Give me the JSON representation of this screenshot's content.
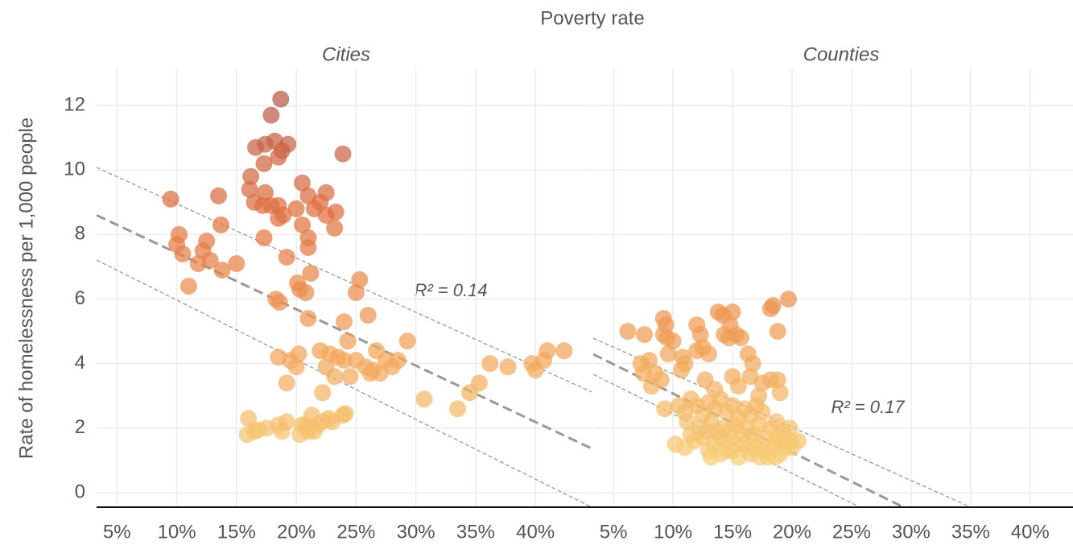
{
  "title": "Poverty rate",
  "ylabel": "Rate of homelessness per 1,000 people",
  "chart_data": [
    {
      "type": "scatter",
      "title": "Cities",
      "annotation": "R² = 0.14",
      "x": [
        18.7,
        17.9,
        16.6,
        17.4,
        18.2,
        18.8,
        19.3,
        18.5,
        17.3,
        23.9,
        16.2,
        16.1,
        17.4,
        16.5,
        17.2,
        17.9,
        18.5,
        18.9,
        18.5,
        20.5,
        21.0,
        22.5,
        22.0,
        21.5,
        22.5,
        23.3,
        20.0,
        23.2,
        20.5,
        21.0,
        17.3,
        21.0,
        19.2,
        13.5,
        9.5,
        13.7,
        10.2,
        10.0,
        12.5,
        10.5,
        12.2,
        11.8,
        12.8,
        15.0,
        13.8,
        11.0,
        21.2,
        20.1,
        20.3,
        20.8,
        25.3,
        25.0,
        18.3,
        18.6,
        21.0,
        26.0,
        24.0,
        24.3,
        18.5,
        19.5,
        20.2,
        20.0,
        19.2,
        22.0,
        22.8,
        23.5,
        22.5,
        23.2,
        24.0,
        25.0,
        24.5,
        25.8,
        26.2,
        26.7,
        26.4,
        27.0,
        27.5,
        28.0,
        28.5,
        29.3,
        22.2,
        30.7,
        33.5,
        34.5,
        35.3,
        36.2,
        37.7,
        39.7,
        40.0,
        40.7,
        41.0,
        42.4,
        16.0,
        15.9,
        16.5,
        16.8,
        17.5,
        18.5,
        18.8,
        19.2,
        20.3,
        20.5,
        21.0,
        21.3,
        21.5,
        21.8,
        22.2,
        22.7,
        23.0,
        21.0,
        23.9,
        24.1,
        20.8
      ],
      "values": [
        12.2,
        11.7,
        10.7,
        10.8,
        10.9,
        10.6,
        10.8,
        10.4,
        10.2,
        10.5,
        9.8,
        9.4,
        9.3,
        9.0,
        8.9,
        8.9,
        8.9,
        8.6,
        8.5,
        9.6,
        9.2,
        9.3,
        9.0,
        8.8,
        8.6,
        8.7,
        8.8,
        8.2,
        8.3,
        7.9,
        7.9,
        7.6,
        7.3,
        9.2,
        9.1,
        8.3,
        8.0,
        7.7,
        7.8,
        7.4,
        7.5,
        7.1,
        7.2,
        7.1,
        6.9,
        6.4,
        6.8,
        6.5,
        6.3,
        6.2,
        6.6,
        6.2,
        6.0,
        5.9,
        5.4,
        5.5,
        5.3,
        4.7,
        4.2,
        4.1,
        4.3,
        3.9,
        3.4,
        4.4,
        4.3,
        4.2,
        3.9,
        3.6,
        4.1,
        4.1,
        3.6,
        3.9,
        3.7,
        4.4,
        3.8,
        3.7,
        4.1,
        3.9,
        4.1,
        4.7,
        3.1,
        2.9,
        2.6,
        3.1,
        3.4,
        4.0,
        3.9,
        4.0,
        3.8,
        4.1,
        4.4,
        4.4,
        2.3,
        1.8,
        1.9,
        1.95,
        2.0,
        2.1,
        1.9,
        2.2,
        1.8,
        2.1,
        2.0,
        2.4,
        1.9,
        2.1,
        2.2,
        2.3,
        2.2,
        1.9,
        2.4,
        2.45,
        2.1
      ],
      "fit": {
        "x": [
          3.3,
          44.7
        ],
        "values": [
          8.6,
          1.37
        ]
      },
      "upper": {
        "x": [
          3.3,
          44.7
        ],
        "values": [
          10.08,
          3.12
        ]
      },
      "lower": {
        "x": [
          3.3,
          44.7
        ],
        "values": [
          7.21,
          -0.45
        ]
      },
      "xlim": [
        3.3,
        44.7
      ],
      "ylim": [
        -0.45,
        13.15
      ],
      "xticks": [
        {
          "value": 5,
          "label": "5%"
        },
        {
          "value": 10,
          "label": "10%"
        },
        {
          "value": 15,
          "label": "15%"
        },
        {
          "value": 20,
          "label": "20%"
        },
        {
          "value": 25,
          "label": "25%"
        },
        {
          "value": 30,
          "label": "30%"
        },
        {
          "value": 35,
          "label": "35%"
        },
        {
          "value": 40,
          "label": "40%"
        }
      ],
      "yticks": [
        0,
        2,
        4,
        6,
        8,
        10,
        12
      ],
      "grid": true,
      "color_scale": [
        "#f7d27a",
        "#f1a057",
        "#e0703f",
        "#b55749"
      ]
    },
    {
      "type": "scatter",
      "title": "Counties",
      "annotation": "R² = 0.17",
      "x": [
        6.2,
        7.6,
        9.2,
        9.4,
        9.2,
        9.5,
        10.0,
        9.6,
        10.8,
        11.0,
        10.7,
        7.3,
        7.5,
        8.0,
        8.5,
        8.2,
        9.0,
        12.0,
        12.3,
        12.5,
        12.0,
        13.0,
        13.8,
        14.2,
        15.0,
        14.8,
        15.3,
        14.7,
        15.7,
        14.3,
        16.3,
        16.7,
        18.2,
        18.4,
        19.7,
        18.8,
        12.7,
        13.5,
        15.0,
        15.5,
        16.5,
        17.5,
        18.2,
        18.8,
        19.0,
        17.2,
        9.3,
        10.5,
        11.0,
        11.5,
        12.0,
        12.5,
        13.0,
        13.5,
        14.0,
        14.5,
        15.0,
        15.5,
        16.0,
        16.5,
        17.0,
        17.5,
        11.2,
        12.2,
        13.2,
        14.2,
        15.2,
        16.2,
        17.2,
        18.2,
        18.7,
        19.2,
        19.8,
        20.5,
        20.0,
        10.2,
        11.0,
        11.8,
        12.5,
        13.0,
        13.5,
        14.0,
        14.5,
        15.0,
        15.5,
        16.0,
        16.5,
        17.0,
        17.5,
        18.0,
        18.5,
        19.0,
        19.5,
        13.2,
        14.0,
        15.8,
        16.8,
        17.8,
        18.8,
        12.8,
        14.8,
        16.3,
        17.3,
        18.3,
        19.3,
        15.3,
        11.5,
        13.7,
        14.6,
        16.9,
        18.6,
        19.9
      ],
      "values": [
        5.0,
        4.9,
        5.4,
        5.2,
        4.9,
        4.8,
        4.7,
        4.3,
        4.2,
        4.0,
        3.8,
        4.0,
        3.7,
        4.1,
        3.7,
        3.3,
        3.5,
        5.2,
        4.9,
        4.5,
        4.4,
        4.3,
        5.6,
        5.5,
        5.6,
        5.2,
        4.9,
        4.8,
        4.8,
        4.9,
        4.3,
        4.0,
        5.7,
        5.8,
        6.0,
        5.0,
        3.5,
        3.2,
        3.6,
        3.3,
        3.6,
        3.4,
        3.5,
        3.5,
        3.1,
        3.0,
        2.6,
        2.7,
        2.5,
        2.9,
        2.7,
        2.4,
        2.8,
        2.6,
        2.9,
        2.5,
        2.7,
        2.3,
        2.6,
        2.4,
        2.7,
        2.5,
        2.2,
        2.0,
        2.2,
        2.0,
        2.1,
        2.0,
        2.1,
        2.0,
        2.2,
        1.9,
        2.0,
        1.6,
        1.4,
        1.5,
        1.4,
        1.6,
        1.7,
        1.3,
        1.5,
        1.2,
        1.6,
        1.3,
        1.1,
        1.5,
        1.2,
        1.6,
        1.3,
        1.1,
        1.5,
        1.2,
        1.4,
        1.1,
        1.7,
        1.8,
        1.8,
        1.7,
        1.7,
        1.9,
        1.9,
        1.4,
        1.1,
        1.3,
        1.6,
        1.5,
        1.8,
        1.9,
        1.3,
        1.35,
        1.1,
        1.6
      ],
      "fit": {
        "x": [
          3.3,
          29.36
        ],
        "values": [
          4.29,
          -0.45
        ]
      },
      "upper": {
        "x": [
          3.3,
          35.0
        ],
        "values": [
          4.79,
          -0.45
        ]
      },
      "lower": {
        "x": [
          3.3,
          25.7
        ],
        "values": [
          3.67,
          -0.45
        ]
      },
      "xlim": [
        3.3,
        43.6
      ],
      "ylim": [
        -0.45,
        13.15
      ],
      "xticks": [
        {
          "value": 5,
          "label": "5%"
        },
        {
          "value": 10,
          "label": "10%"
        },
        {
          "value": 15,
          "label": "15%"
        },
        {
          "value": 20,
          "label": "20%"
        },
        {
          "value": 25,
          "label": "25%"
        },
        {
          "value": 30,
          "label": "30%"
        },
        {
          "value": 35,
          "label": "35%"
        },
        {
          "value": 40,
          "label": "40%"
        }
      ],
      "yticks": [
        0,
        2,
        4,
        6,
        8,
        10,
        12
      ],
      "grid": true,
      "color_scale": [
        "#f7d27a",
        "#f1a057",
        "#e0703f",
        "#b55749"
      ]
    }
  ]
}
